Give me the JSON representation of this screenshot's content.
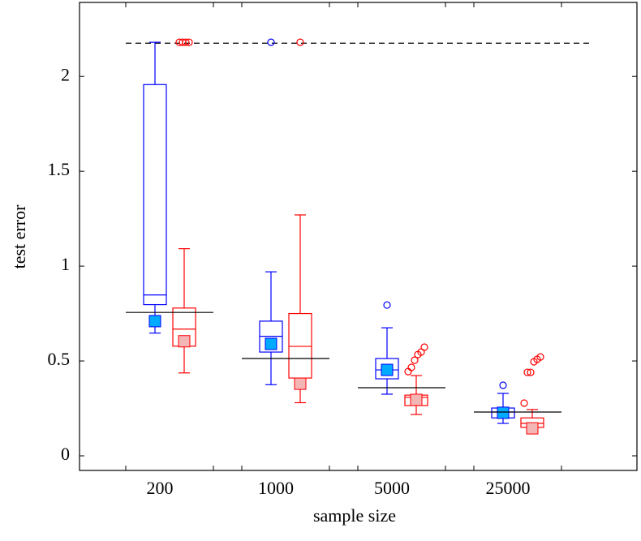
{
  "chart_data": {
    "type": "box",
    "xlabel": "sample size",
    "ylabel": "test error",
    "categories": [
      "200",
      "1000",
      "5000",
      "25000"
    ],
    "ylim": [
      -0.077,
      2.39
    ],
    "yticks": [
      0,
      0.5,
      1,
      1.5,
      2
    ],
    "series": [
      {
        "color": "#0000ff",
        "mean_fill": "#00aaff",
        "boxes": [
          {
            "low": 0.647,
            "q1": 0.797,
            "median": 0.848,
            "q3": 1.957,
            "high": 2.18,
            "mean": 0.71,
            "outliers": []
          },
          {
            "low": 0.375,
            "q1": 0.547,
            "median": 0.63,
            "q3": 0.71,
            "high": 0.97,
            "mean": 0.59,
            "outliers": [
              2.18
            ]
          },
          {
            "low": 0.325,
            "q1": 0.406,
            "median": 0.453,
            "q3": 0.513,
            "high": 0.675,
            "mean": 0.453,
            "outliers": [
              0.795
            ]
          },
          {
            "low": 0.171,
            "q1": 0.2,
            "median": 0.231,
            "q3": 0.252,
            "high": 0.329,
            "mean": 0.227,
            "outliers": [
              0.372
            ]
          }
        ]
      },
      {
        "color": "#ff0000",
        "mean_fill": "#f4b5b5",
        "boxes": [
          {
            "low": 0.437,
            "q1": 0.578,
            "median": 0.668,
            "q3": 0.779,
            "high": 1.092,
            "mean": 0.604,
            "outliers": [
              2.18,
              2.18,
              2.18,
              2.18
            ]
          },
          {
            "low": 0.28,
            "q1": 0.41,
            "median": 0.577,
            "q3": 0.75,
            "high": 1.27,
            "mean": 0.38,
            "outliers": [
              2.18
            ]
          },
          {
            "low": 0.218,
            "q1": 0.265,
            "median": 0.308,
            "q3": 0.32,
            "high": 0.423,
            "mean": 0.295,
            "outliers": [
              0.444,
              0.466,
              0.504,
              0.534,
              0.547,
              0.573
            ]
          },
          {
            "low": 0.137,
            "q1": 0.15,
            "median": 0.171,
            "q3": 0.2,
            "high": 0.244,
            "mean": 0.145,
            "outliers": [
              0.278,
              0.44,
              0.44,
              0.496,
              0.509,
              0.521
            ]
          }
        ]
      }
    ],
    "reference_values": [
      0.756,
      0.513,
      0.359,
      0.231
    ],
    "dashed_line": 2.175
  }
}
